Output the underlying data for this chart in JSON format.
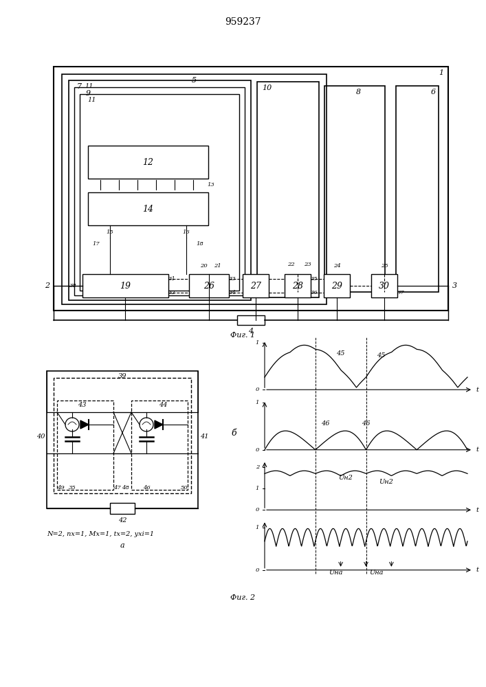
{
  "title": "959237",
  "fig1_caption": "Фиг. 1",
  "fig2_caption": "Фиг. 2",
  "formula_text": "N=2, nx=1, Mx=1, tx=2, yxi=1"
}
